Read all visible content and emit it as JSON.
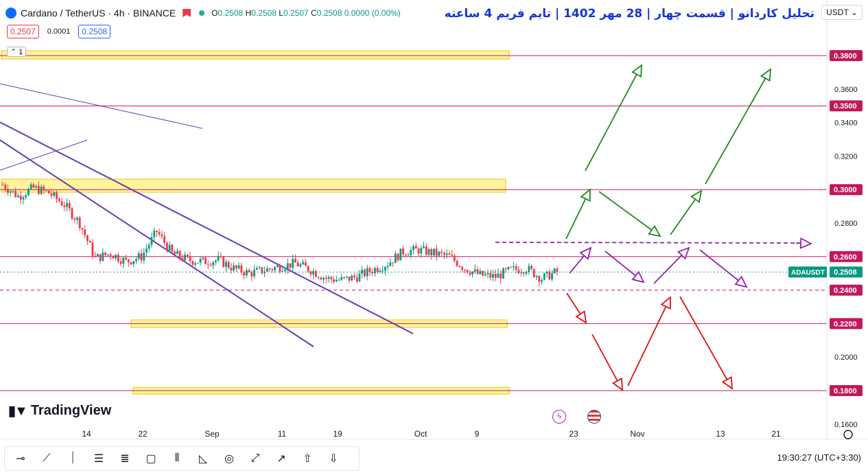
{
  "header": {
    "symbol": "Cardano / TetherUS · 4h · BINANCE",
    "ohlc": {
      "o_label": "O",
      "o": "0.2508",
      "h_label": "H",
      "h": "0.2508",
      "l_label": "L",
      "l": "0.2507",
      "c_label": "C",
      "c": "0.2508",
      "change": "0.0000 (0.00%)"
    },
    "sell_price": "0.2507",
    "spread": "0.0001",
    "buy_price": "0.2508",
    "legend_count": "1"
  },
  "title_fa": "تحلیل کاردانو | قسمت چهار | 28 مهر 1402 | تایم فریم 4 ساعته",
  "currency": "USDT",
  "brand": "TradingView",
  "clock": "19:30:27 (UTC+3:30)",
  "toolbar_icons": [
    "horizontal-ray",
    "trend-line",
    "vertical-line",
    "parallel-channel",
    "fib-retracement",
    "rectangle",
    "long-short",
    "abcd-pattern",
    "circle",
    "brush",
    "arrow-up-right",
    "arrow-up",
    "arrow-down"
  ],
  "colors": {
    "up": "#089981",
    "down": "#f23645",
    "zone": "#fff176",
    "hline": "#c2185b",
    "trend": "#673ab7",
    "arrow_green": "#1b8a1b",
    "arrow_red": "#e01010",
    "arrow_purple": "#8e24aa",
    "accent": "#2962ff"
  },
  "chart_data": {
    "type": "line",
    "title": "Cardano / TetherUS · 4h · BINANCE",
    "ylim": [
      0.16,
      0.385
    ],
    "y_ticks": [
      0.16,
      0.18,
      0.2,
      0.22,
      0.24,
      0.26,
      0.28,
      0.3,
      0.32,
      0.34,
      0.36,
      0.38
    ],
    "highlighted_levels": [
      "0.3800",
      "0.3500",
      "0.3000",
      "0.2600",
      "0.2400",
      "0.2200",
      "0.1800"
    ],
    "current": {
      "label": "ADAUSDT",
      "value": "0.2508"
    },
    "x_ticks": [
      "14",
      "22",
      "Sep",
      "11",
      "19",
      "Oct",
      "9",
      "23",
      "Nov",
      "13",
      "21"
    ],
    "series": [
      {
        "x": [
          "Aug 9",
          "Aug 11",
          "Aug 13",
          "Aug 15",
          "Aug 17",
          "Aug 19",
          "Aug 21",
          "Aug 23",
          "Aug 25",
          "Aug 27",
          "Aug 29",
          "Aug 31",
          "Sep 2",
          "Sep 4",
          "Sep 6",
          "Sep 8",
          "Sep 10",
          "Sep 12",
          "Sep 14",
          "Sep 16",
          "Sep 18",
          "Sep 20",
          "Sep 22",
          "Sep 24",
          "Sep 26",
          "Sep 28",
          "Sep 30",
          "Oct 2",
          "Oct 4",
          "Oct 6",
          "Oct 8",
          "Oct 10",
          "Oct 12",
          "Oct 14",
          "Oct 16",
          "Oct 18",
          "Oct 20"
        ],
        "values": [
          0.303,
          0.296,
          0.301,
          0.298,
          0.291,
          0.28,
          0.259,
          0.262,
          0.257,
          0.26,
          0.275,
          0.262,
          0.258,
          0.257,
          0.258,
          0.253,
          0.25,
          0.252,
          0.254,
          0.256,
          0.252,
          0.247,
          0.246,
          0.248,
          0.252,
          0.256,
          0.263,
          0.264,
          0.262,
          0.26,
          0.253,
          0.249,
          0.248,
          0.252,
          0.253,
          0.247,
          0.251
        ]
      }
    ]
  }
}
